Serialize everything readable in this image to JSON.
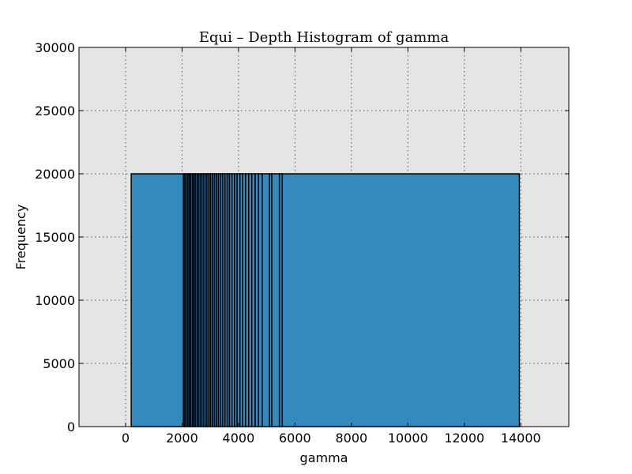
{
  "chart_data": {
    "type": "bar",
    "title": "Equi – Depth Histogram of gamma",
    "xlabel": "gamma",
    "ylabel": "Frequency",
    "xlim": [
      -1650,
      15700
    ],
    "ylim": [
      0,
      30000
    ],
    "xticks": [
      0,
      2000,
      4000,
      6000,
      8000,
      10000,
      12000,
      14000
    ],
    "yticks": [
      0,
      5000,
      10000,
      15000,
      20000,
      25000,
      30000
    ],
    "grid": true,
    "bar_color": "#348abd",
    "plot_background": "#e5e5e5",
    "bin_edges": [
      200,
      2050,
      2100,
      2150,
      2210,
      2260,
      2310,
      2370,
      2420,
      2470,
      2530,
      2580,
      2640,
      2700,
      2760,
      2820,
      2880,
      2950,
      3010,
      3080,
      3150,
      3220,
      3290,
      3370,
      3440,
      3520,
      3600,
      3680,
      3770,
      3860,
      3950,
      4050,
      4150,
      4250,
      4360,
      4470,
      4590,
      4710,
      4840,
      5100,
      5180,
      5450,
      5550,
      13950
    ],
    "bin_count": 20000
  }
}
